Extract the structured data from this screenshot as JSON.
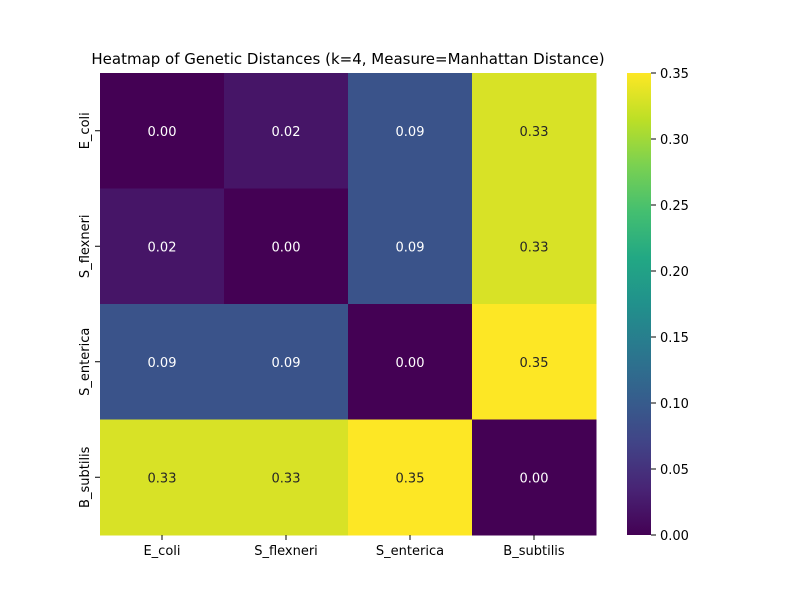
{
  "chart_data": {
    "type": "heatmap",
    "title": "Heatmap of Genetic Distances (k=4, Measure=Manhattan Distance)",
    "xlabel": "",
    "ylabel": "",
    "x_categories": [
      "E_coli",
      "S_flexneri",
      "S_enterica",
      "B_subtilis"
    ],
    "y_categories": [
      "E_coli",
      "S_flexneri",
      "S_enterica",
      "B_subtilis"
    ],
    "values": [
      [
        0.0,
        0.02,
        0.09,
        0.33
      ],
      [
        0.02,
        0.0,
        0.09,
        0.33
      ],
      [
        0.09,
        0.09,
        0.0,
        0.35
      ],
      [
        0.33,
        0.33,
        0.35,
        0.0
      ]
    ],
    "annotations": [
      [
        "0.00",
        "0.02",
        "0.09",
        "0.33"
      ],
      [
        "0.02",
        "0.00",
        "0.09",
        "0.33"
      ],
      [
        "0.09",
        "0.09",
        "0.00",
        "0.35"
      ],
      [
        "0.33",
        "0.33",
        "0.35",
        "0.00"
      ]
    ],
    "colormap": "viridis",
    "colorbar": {
      "range": [
        0.0,
        0.35
      ],
      "ticks": [
        "0.00",
        "0.05",
        "0.10",
        "0.15",
        "0.20",
        "0.25",
        "0.30",
        "0.35"
      ]
    },
    "colorbar_position": "right"
  }
}
